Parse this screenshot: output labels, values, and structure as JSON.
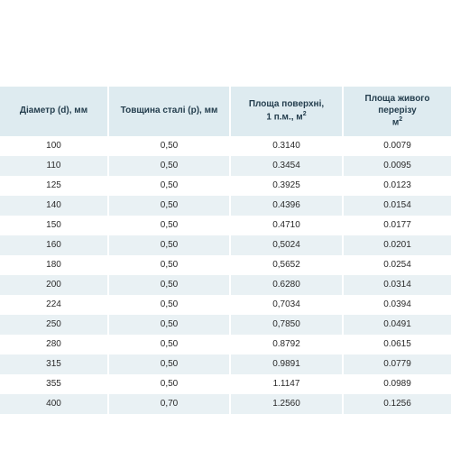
{
  "columns": [
    "Діаметр (d), мм",
    "Товщина сталі (р), мм",
    "Площа поверхні,\n1 п.м., м²",
    "Площа живого перерізу\nм²"
  ],
  "rows": [
    [
      "100",
      "0,50",
      "0.3140",
      "0.0079"
    ],
    [
      "110",
      "0,50",
      "0.3454",
      "0.0095"
    ],
    [
      "125",
      "0,50",
      "0.3925",
      "0.0123"
    ],
    [
      "140",
      "0,50",
      "0.4396",
      "0.0154"
    ],
    [
      "150",
      "0,50",
      "0.4710",
      "0.0177"
    ],
    [
      "160",
      "0,50",
      "0,5024",
      "0.0201"
    ],
    [
      "180",
      "0,50",
      "0,5652",
      "0.0254"
    ],
    [
      "200",
      "0,50",
      "0.6280",
      "0.0314"
    ],
    [
      "224",
      "0,50",
      "0,7034",
      "0.0394"
    ],
    [
      "250",
      "0,50",
      "0,7850",
      "0.0491"
    ],
    [
      "280",
      "0,50",
      "0.8792",
      "0.0615"
    ],
    [
      "315",
      "0,50",
      "0.9891",
      "0.0779"
    ],
    [
      "355",
      "0,50",
      "1.1147",
      "0.0989"
    ],
    [
      "400",
      "0,70",
      "1.2560",
      "0.1256"
    ]
  ],
  "colors": {
    "header_bg": "#deebf0",
    "row_alt_bg": "#e9f1f4",
    "row_bg": "#ffffff",
    "text": "#2a2a2a",
    "header_text": "#233d4d"
  }
}
